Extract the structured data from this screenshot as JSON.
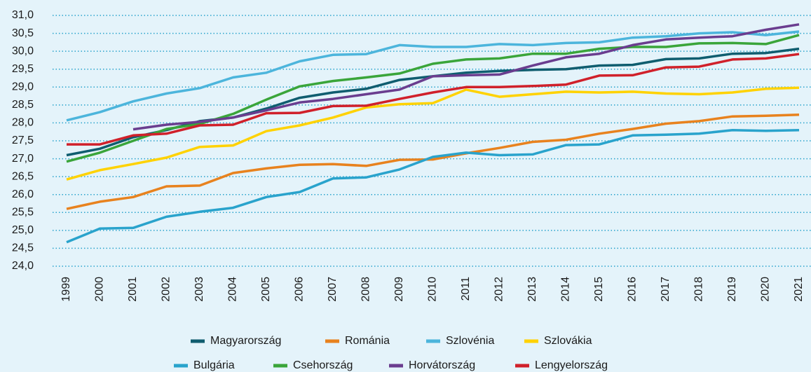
{
  "chart_data": {
    "type": "line",
    "categories": [
      "1999",
      "2000",
      "2001",
      "2002",
      "2003",
      "2004",
      "2005",
      "2006",
      "2007",
      "2008",
      "2009",
      "2010",
      "2011",
      "2012",
      "2013",
      "2014",
      "2015",
      "2016",
      "2017",
      "2018",
      "2019",
      "2020",
      "2021"
    ],
    "ylim": [
      24,
      31
    ],
    "yticks": [
      {
        "value": 24,
        "label": "24,0"
      },
      {
        "value": 24.5,
        "label": "24,5"
      },
      {
        "value": 25,
        "label": "25,0"
      },
      {
        "value": 25.5,
        "label": "25,5"
      },
      {
        "value": 26,
        "label": "26,0"
      },
      {
        "value": 26.5,
        "label": "26,5"
      },
      {
        "value": 27,
        "label": "27,0"
      },
      {
        "value": 27.5,
        "label": "27,5"
      },
      {
        "value": 28,
        "label": "28,0"
      },
      {
        "value": 28.5,
        "label": "28,5"
      },
      {
        "value": 29,
        "label": "29,0"
      },
      {
        "value": 29.5,
        "label": "29,5"
      },
      {
        "value": 30,
        "label": "30,0"
      },
      {
        "value": 30.5,
        "label": "30,5"
      },
      {
        "value": 31,
        "label": "31,0"
      }
    ],
    "grid": true,
    "legend": "bottom",
    "series": [
      {
        "name": "Magyarország",
        "color": "#0f5d6f",
        "values": [
          27.1,
          27.28,
          27.6,
          27.8,
          28.05,
          28.15,
          28.4,
          28.7,
          28.85,
          28.95,
          29.2,
          29.3,
          29.4,
          29.45,
          29.48,
          29.5,
          29.6,
          29.62,
          29.78,
          29.8,
          29.93,
          29.95,
          30.07
        ]
      },
      {
        "name": "Románia",
        "color": "#e8821e",
        "values": [
          25.6,
          25.8,
          25.93,
          26.23,
          26.25,
          26.6,
          26.73,
          26.83,
          26.85,
          26.8,
          26.97,
          26.98,
          27.15,
          27.3,
          27.47,
          27.53,
          27.7,
          27.83,
          27.98,
          28.05,
          28.18,
          28.2,
          28.23
        ]
      },
      {
        "name": "Szlovénia",
        "color": "#4cb5dc",
        "values": [
          28.07,
          28.3,
          28.6,
          28.82,
          28.97,
          29.27,
          29.4,
          29.72,
          29.9,
          29.92,
          30.17,
          30.12,
          30.12,
          30.2,
          30.17,
          30.23,
          30.25,
          30.38,
          30.42,
          30.5,
          30.53,
          30.45,
          30.55
        ]
      },
      {
        "name": "Szlovákia",
        "color": "#ffd200",
        "values": [
          26.42,
          26.68,
          26.85,
          27.03,
          27.33,
          27.37,
          27.77,
          27.93,
          28.15,
          28.43,
          28.52,
          28.55,
          28.93,
          28.73,
          28.8,
          28.87,
          28.85,
          28.87,
          28.82,
          28.8,
          28.85,
          28.95,
          28.98
        ]
      },
      {
        "name": "Bulgária",
        "color": "#29a3cc",
        "values": [
          24.67,
          25.05,
          25.07,
          25.38,
          25.52,
          25.63,
          25.93,
          26.07,
          26.45,
          26.48,
          26.7,
          27.05,
          27.17,
          27.1,
          27.12,
          27.38,
          27.4,
          27.65,
          27.67,
          27.7,
          27.8,
          27.78,
          27.8
        ]
      },
      {
        "name": "Csehország",
        "color": "#3aa53a",
        "values": [
          26.92,
          27.17,
          27.5,
          27.83,
          27.97,
          28.25,
          28.65,
          29.02,
          29.17,
          29.27,
          29.38,
          29.65,
          29.77,
          29.8,
          29.93,
          29.93,
          30.07,
          30.12,
          30.12,
          30.22,
          30.23,
          30.2,
          30.45
        ]
      },
      {
        "name": "Horvátország",
        "color": "#6a3d8f",
        "values": [
          null,
          null,
          27.82,
          27.95,
          28.03,
          28.15,
          28.35,
          28.57,
          28.67,
          28.8,
          28.93,
          29.3,
          29.33,
          29.35,
          29.6,
          29.83,
          29.93,
          30.17,
          30.33,
          30.38,
          30.42,
          30.6,
          30.75
        ]
      },
      {
        "name": "Lengyelország",
        "color": "#d0202a",
        "values": [
          27.4,
          27.4,
          27.65,
          27.7,
          27.93,
          27.95,
          28.27,
          28.28,
          28.47,
          28.48,
          28.67,
          28.85,
          29.0,
          29.0,
          29.03,
          29.07,
          29.32,
          29.33,
          29.55,
          29.57,
          29.77,
          29.8,
          29.92
        ]
      }
    ]
  }
}
